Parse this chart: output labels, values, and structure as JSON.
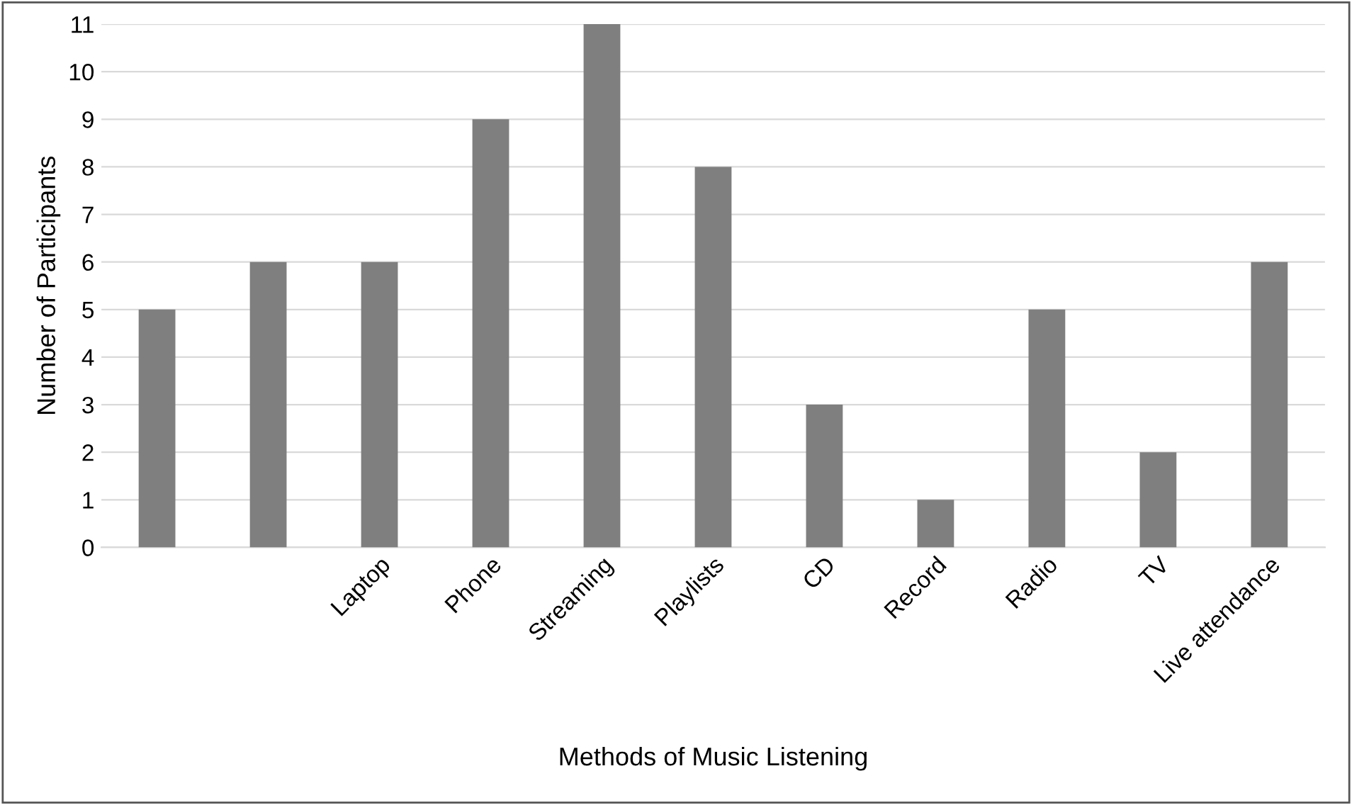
{
  "chart_data": {
    "type": "bar",
    "xlabel": "Methods of Music Listening",
    "ylabel": "Number of Participants",
    "categories": [
      null,
      null,
      "Laptop",
      "Phone",
      "Streaming",
      "Playlists",
      "CD",
      "Record",
      "Radio",
      "TV",
      "Live attendance"
    ],
    "values": [
      5,
      6,
      6,
      9,
      11,
      8,
      3,
      1,
      5,
      2,
      6
    ],
    "color": "#7f7f7f",
    "ylim": [
      0,
      11
    ],
    "yticks": [
      0,
      1,
      2,
      3,
      4,
      5,
      6,
      7,
      8,
      9,
      10,
      11
    ],
    "grid": "y",
    "legend": false
  }
}
